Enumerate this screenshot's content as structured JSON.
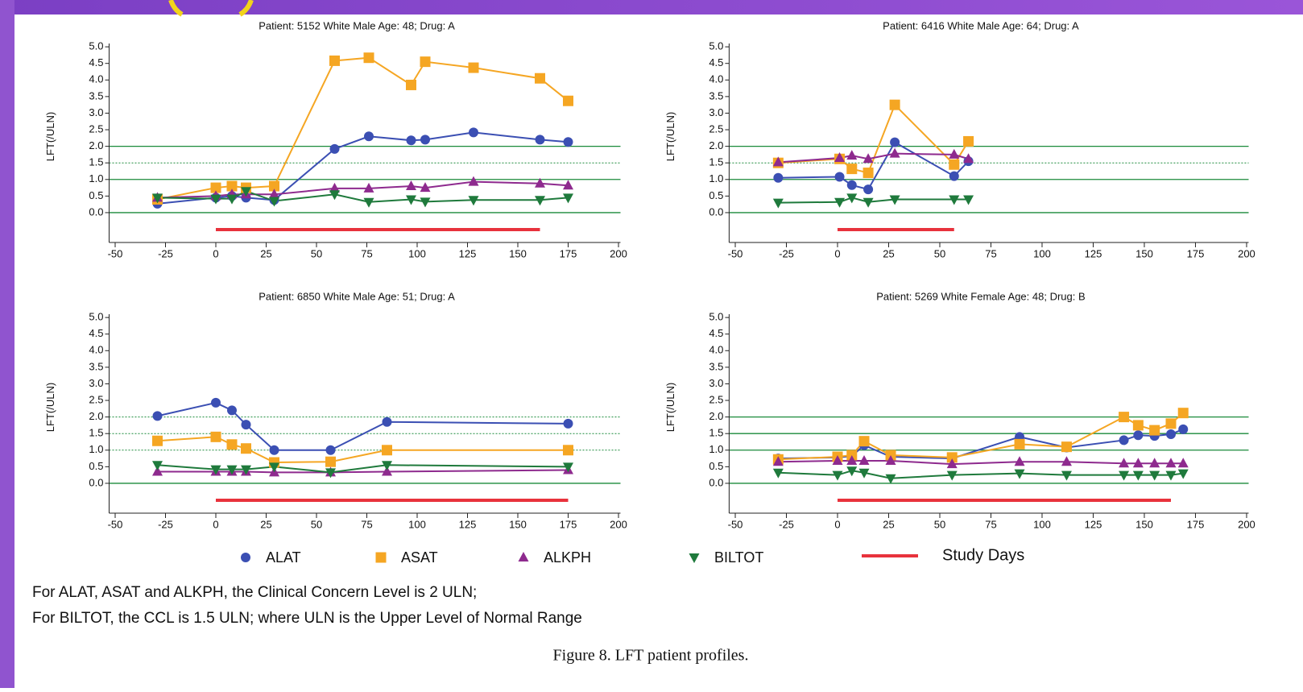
{
  "chart_data": [
    {
      "type": "line",
      "title": "Patient: 5152 White Male Age: 48; Drug: A",
      "ylabel": "LFT(/ULN)",
      "x": [
        -29,
        0,
        8,
        15,
        29,
        59,
        76,
        97,
        104,
        128,
        161,
        175
      ],
      "series": [
        {
          "name": "ALAT",
          "color": "#3b4fb3",
          "marker": "circle",
          "values": [
            0.27,
            0.45,
            0.5,
            0.45,
            0.38,
            1.92,
            2.3,
            2.18,
            2.2,
            2.42,
            2.2,
            2.13
          ]
        },
        {
          "name": "ASAT",
          "color": "#f5a623",
          "marker": "square",
          "values": [
            0.4,
            0.75,
            0.8,
            0.75,
            0.8,
            4.58,
            4.67,
            3.85,
            4.55,
            4.37,
            4.05,
            3.37
          ]
        },
        {
          "name": "ALKPH",
          "color": "#8e2a8e",
          "marker": "triangle-up",
          "values": [
            0.45,
            0.5,
            0.55,
            0.55,
            0.55,
            0.73,
            0.73,
            0.8,
            0.75,
            0.93,
            0.88,
            0.82
          ]
        },
        {
          "name": "BILTOT",
          "color": "#1f7a3c",
          "marker": "triangle-down",
          "values": [
            0.45,
            0.42,
            0.42,
            0.65,
            0.35,
            0.55,
            0.32,
            0.4,
            0.33,
            0.38,
            0.38,
            0.45
          ]
        }
      ],
      "study_days": [
        0,
        161
      ],
      "study_days_color": "#e8323c",
      "reference_lines": [
        {
          "value": 0,
          "style": "solid"
        },
        {
          "value": 1,
          "style": "solid"
        },
        {
          "value": 1.5,
          "style": "dotted"
        },
        {
          "value": 2,
          "style": "solid"
        }
      ],
      "reference_color": "#1a8a3a",
      "xlim": [
        -53,
        201
      ],
      "xticks": [
        -50,
        -25,
        0,
        25,
        50,
        75,
        100,
        125,
        150,
        175,
        200
      ],
      "ylim": [
        -0.9,
        5.1
      ],
      "yticks": [
        {
          "value": 0,
          "label": "0.0"
        },
        {
          "value": 0.5,
          "label": "0.5"
        },
        {
          "value": 1,
          "label": "1.0"
        },
        {
          "value": 1.5,
          "label": "1.5"
        },
        {
          "value": 2,
          "label": "2.0"
        },
        {
          "value": 2.5,
          "label": "2.5"
        },
        {
          "value": 3,
          "label": "3.0"
        },
        {
          "value": 3.5,
          "label": "3.5"
        },
        {
          "value": 4,
          "label": "4.0"
        },
        {
          "value": 4.5,
          "label": "4.5"
        },
        {
          "value": 5,
          "label": "5.0"
        }
      ]
    },
    {
      "type": "line",
      "title": "Patient: 6416 White Male Age: 64; Drug: A",
      "ylabel": "LFT(/ULN)",
      "x": [
        -29,
        1,
        7,
        15,
        28,
        57,
        64
      ],
      "series": [
        {
          "name": "ALAT",
          "color": "#3b4fb3",
          "marker": "circle",
          "values": [
            1.05,
            1.08,
            0.83,
            0.7,
            2.12,
            1.1,
            1.55
          ]
        },
        {
          "name": "ASAT",
          "color": "#f5a623",
          "marker": "square",
          "values": [
            1.5,
            1.62,
            1.32,
            1.2,
            3.25,
            1.45,
            2.15
          ]
        },
        {
          "name": "ALKPH",
          "color": "#8e2a8e",
          "marker": "triangle-up",
          "values": [
            1.52,
            1.65,
            1.72,
            1.62,
            1.78,
            1.75,
            1.62
          ]
        },
        {
          "name": "BILTOT",
          "color": "#1f7a3c",
          "marker": "triangle-down",
          "values": [
            0.3,
            0.32,
            0.45,
            0.32,
            0.4,
            0.4,
            0.4
          ]
        }
      ],
      "study_days": [
        0,
        57
      ],
      "study_days_color": "#e8323c",
      "reference_lines": [
        {
          "value": 0,
          "style": "solid"
        },
        {
          "value": 1,
          "style": "solid"
        },
        {
          "value": 1.5,
          "style": "dotted"
        },
        {
          "value": 2,
          "style": "solid"
        }
      ],
      "reference_color": "#1a8a3a",
      "xlim": [
        -53,
        201
      ],
      "xticks": [
        -50,
        -25,
        0,
        25,
        50,
        75,
        100,
        125,
        150,
        175,
        200
      ],
      "ylim": [
        -0.9,
        5.1
      ],
      "yticks": [
        {
          "value": 0,
          "label": "0.0"
        },
        {
          "value": 0.5,
          "label": "0.5"
        },
        {
          "value": 1,
          "label": "1.0"
        },
        {
          "value": 1.5,
          "label": "1.5"
        },
        {
          "value": 2,
          "label": "2.0"
        },
        {
          "value": 2.5,
          "label": "2.5"
        },
        {
          "value": 3,
          "label": "3.0"
        },
        {
          "value": 3.5,
          "label": "3.5"
        },
        {
          "value": 4,
          "label": "4.0"
        },
        {
          "value": 4.5,
          "label": "4.5"
        },
        {
          "value": 5,
          "label": "5.0"
        }
      ]
    },
    {
      "type": "line",
      "title": "Patient: 6850 White Male Age: 51; Drug: A",
      "ylabel": "LFT(/ULN)",
      "x": [
        -29,
        0,
        8,
        15,
        29,
        57,
        85,
        175
      ],
      "series": [
        {
          "name": "ALAT",
          "color": "#3b4fb3",
          "marker": "circle",
          "values": [
            2.03,
            2.43,
            2.2,
            1.77,
            1.0,
            1.0,
            1.85,
            1.8
          ]
        },
        {
          "name": "ASAT",
          "color": "#f5a623",
          "marker": "square",
          "values": [
            1.28,
            1.4,
            1.17,
            1.05,
            0.63,
            0.65,
            1.0,
            1.0
          ]
        },
        {
          "name": "ALKPH",
          "color": "#8e2a8e",
          "marker": "triangle-up",
          "values": [
            0.35,
            0.35,
            0.35,
            0.35,
            0.33,
            0.33,
            0.35,
            0.4
          ]
        },
        {
          "name": "BILTOT",
          "color": "#1f7a3c",
          "marker": "triangle-down",
          "values": [
            0.55,
            0.42,
            0.42,
            0.42,
            0.5,
            0.33,
            0.55,
            0.5
          ]
        }
      ],
      "study_days": [
        0,
        175
      ],
      "study_days_color": "#e8323c",
      "reference_lines": [
        {
          "value": 0,
          "style": "solid"
        },
        {
          "value": 1,
          "style": "dotted"
        },
        {
          "value": 1.5,
          "style": "dotted"
        },
        {
          "value": 2,
          "style": "dotted"
        }
      ],
      "reference_color": "#1a8a3a",
      "xlim": [
        -53,
        201
      ],
      "xticks": [
        -50,
        -25,
        0,
        25,
        50,
        75,
        100,
        125,
        150,
        175,
        200
      ],
      "ylim": [
        -0.9,
        5.1
      ],
      "yticks": [
        {
          "value": 0,
          "label": "0.0"
        },
        {
          "value": 0.5,
          "label": "0.5"
        },
        {
          "value": 1,
          "label": "1.0"
        },
        {
          "value": 1.5,
          "label": "1.5"
        },
        {
          "value": 2,
          "label": "2.0"
        },
        {
          "value": 2.5,
          "label": "2.5"
        },
        {
          "value": 3,
          "label": "3.0"
        },
        {
          "value": 3.5,
          "label": "3.5"
        },
        {
          "value": 4,
          "label": "4.0"
        },
        {
          "value": 4.5,
          "label": "4.5"
        },
        {
          "value": 5,
          "label": "5.0"
        }
      ]
    },
    {
      "type": "line",
      "title": "Patient: 5269 White Female Age: 48; Drug: B",
      "ylabel": "LFT(/ULN)",
      "x": [
        -29,
        0,
        7,
        13,
        26,
        56,
        89,
        112,
        140,
        147,
        155,
        163,
        169
      ],
      "series": [
        {
          "name": "ALAT",
          "color": "#3b4fb3",
          "marker": "circle",
          "values": [
            0.75,
            0.78,
            0.82,
            1.15,
            0.8,
            0.75,
            1.4,
            1.08,
            1.3,
            1.45,
            1.43,
            1.48,
            1.63
          ]
        },
        {
          "name": "ASAT",
          "color": "#f5a623",
          "marker": "square",
          "values": [
            0.72,
            0.8,
            0.85,
            1.27,
            0.85,
            0.78,
            1.18,
            1.1,
            2.0,
            1.75,
            1.6,
            1.8,
            2.12
          ]
        },
        {
          "name": "ALKPH",
          "color": "#8e2a8e",
          "marker": "triangle-up",
          "values": [
            0.65,
            0.68,
            0.68,
            0.68,
            0.68,
            0.58,
            0.65,
            0.65,
            0.6,
            0.6,
            0.6,
            0.6,
            0.6
          ]
        },
        {
          "name": "BILTOT",
          "color": "#1f7a3c",
          "marker": "triangle-down",
          "values": [
            0.32,
            0.25,
            0.38,
            0.32,
            0.15,
            0.25,
            0.3,
            0.25,
            0.25,
            0.25,
            0.25,
            0.25,
            0.3
          ]
        }
      ],
      "study_days": [
        0,
        163
      ],
      "study_days_color": "#e8323c",
      "reference_lines": [
        {
          "value": 0,
          "style": "solid"
        },
        {
          "value": 1,
          "style": "solid"
        },
        {
          "value": 1.5,
          "style": "solid"
        },
        {
          "value": 2,
          "style": "solid"
        }
      ],
      "reference_color": "#1a8a3a",
      "xlim": [
        -53,
        201
      ],
      "xticks": [
        -50,
        -25,
        0,
        25,
        50,
        75,
        100,
        125,
        150,
        175,
        200
      ],
      "ylim": [
        -0.9,
        5.1
      ],
      "yticks": [
        {
          "value": 0,
          "label": "0.0"
        },
        {
          "value": 0.5,
          "label": "0.5"
        },
        {
          "value": 1,
          "label": "1.0"
        },
        {
          "value": 1.5,
          "label": "1.5"
        },
        {
          "value": 2,
          "label": "2.0"
        },
        {
          "value": 2.5,
          "label": "2.5"
        },
        {
          "value": 3,
          "label": "3.0"
        },
        {
          "value": 3.5,
          "label": "3.5"
        },
        {
          "value": 4,
          "label": "4.0"
        },
        {
          "value": 4.5,
          "label": "4.5"
        },
        {
          "value": 5,
          "label": "5.0"
        }
      ]
    }
  ],
  "study_days_label": "Study Days",
  "footnotes": [
    "For ALAT, ASAT and ALKPH, the Clinical Concern Level is 2 ULN;",
    "For BILTOT, the CCL is 1.5 ULN; where ULN is the Upper Level of Normal Range"
  ],
  "caption": "Figure 8. LFT patient profiles."
}
